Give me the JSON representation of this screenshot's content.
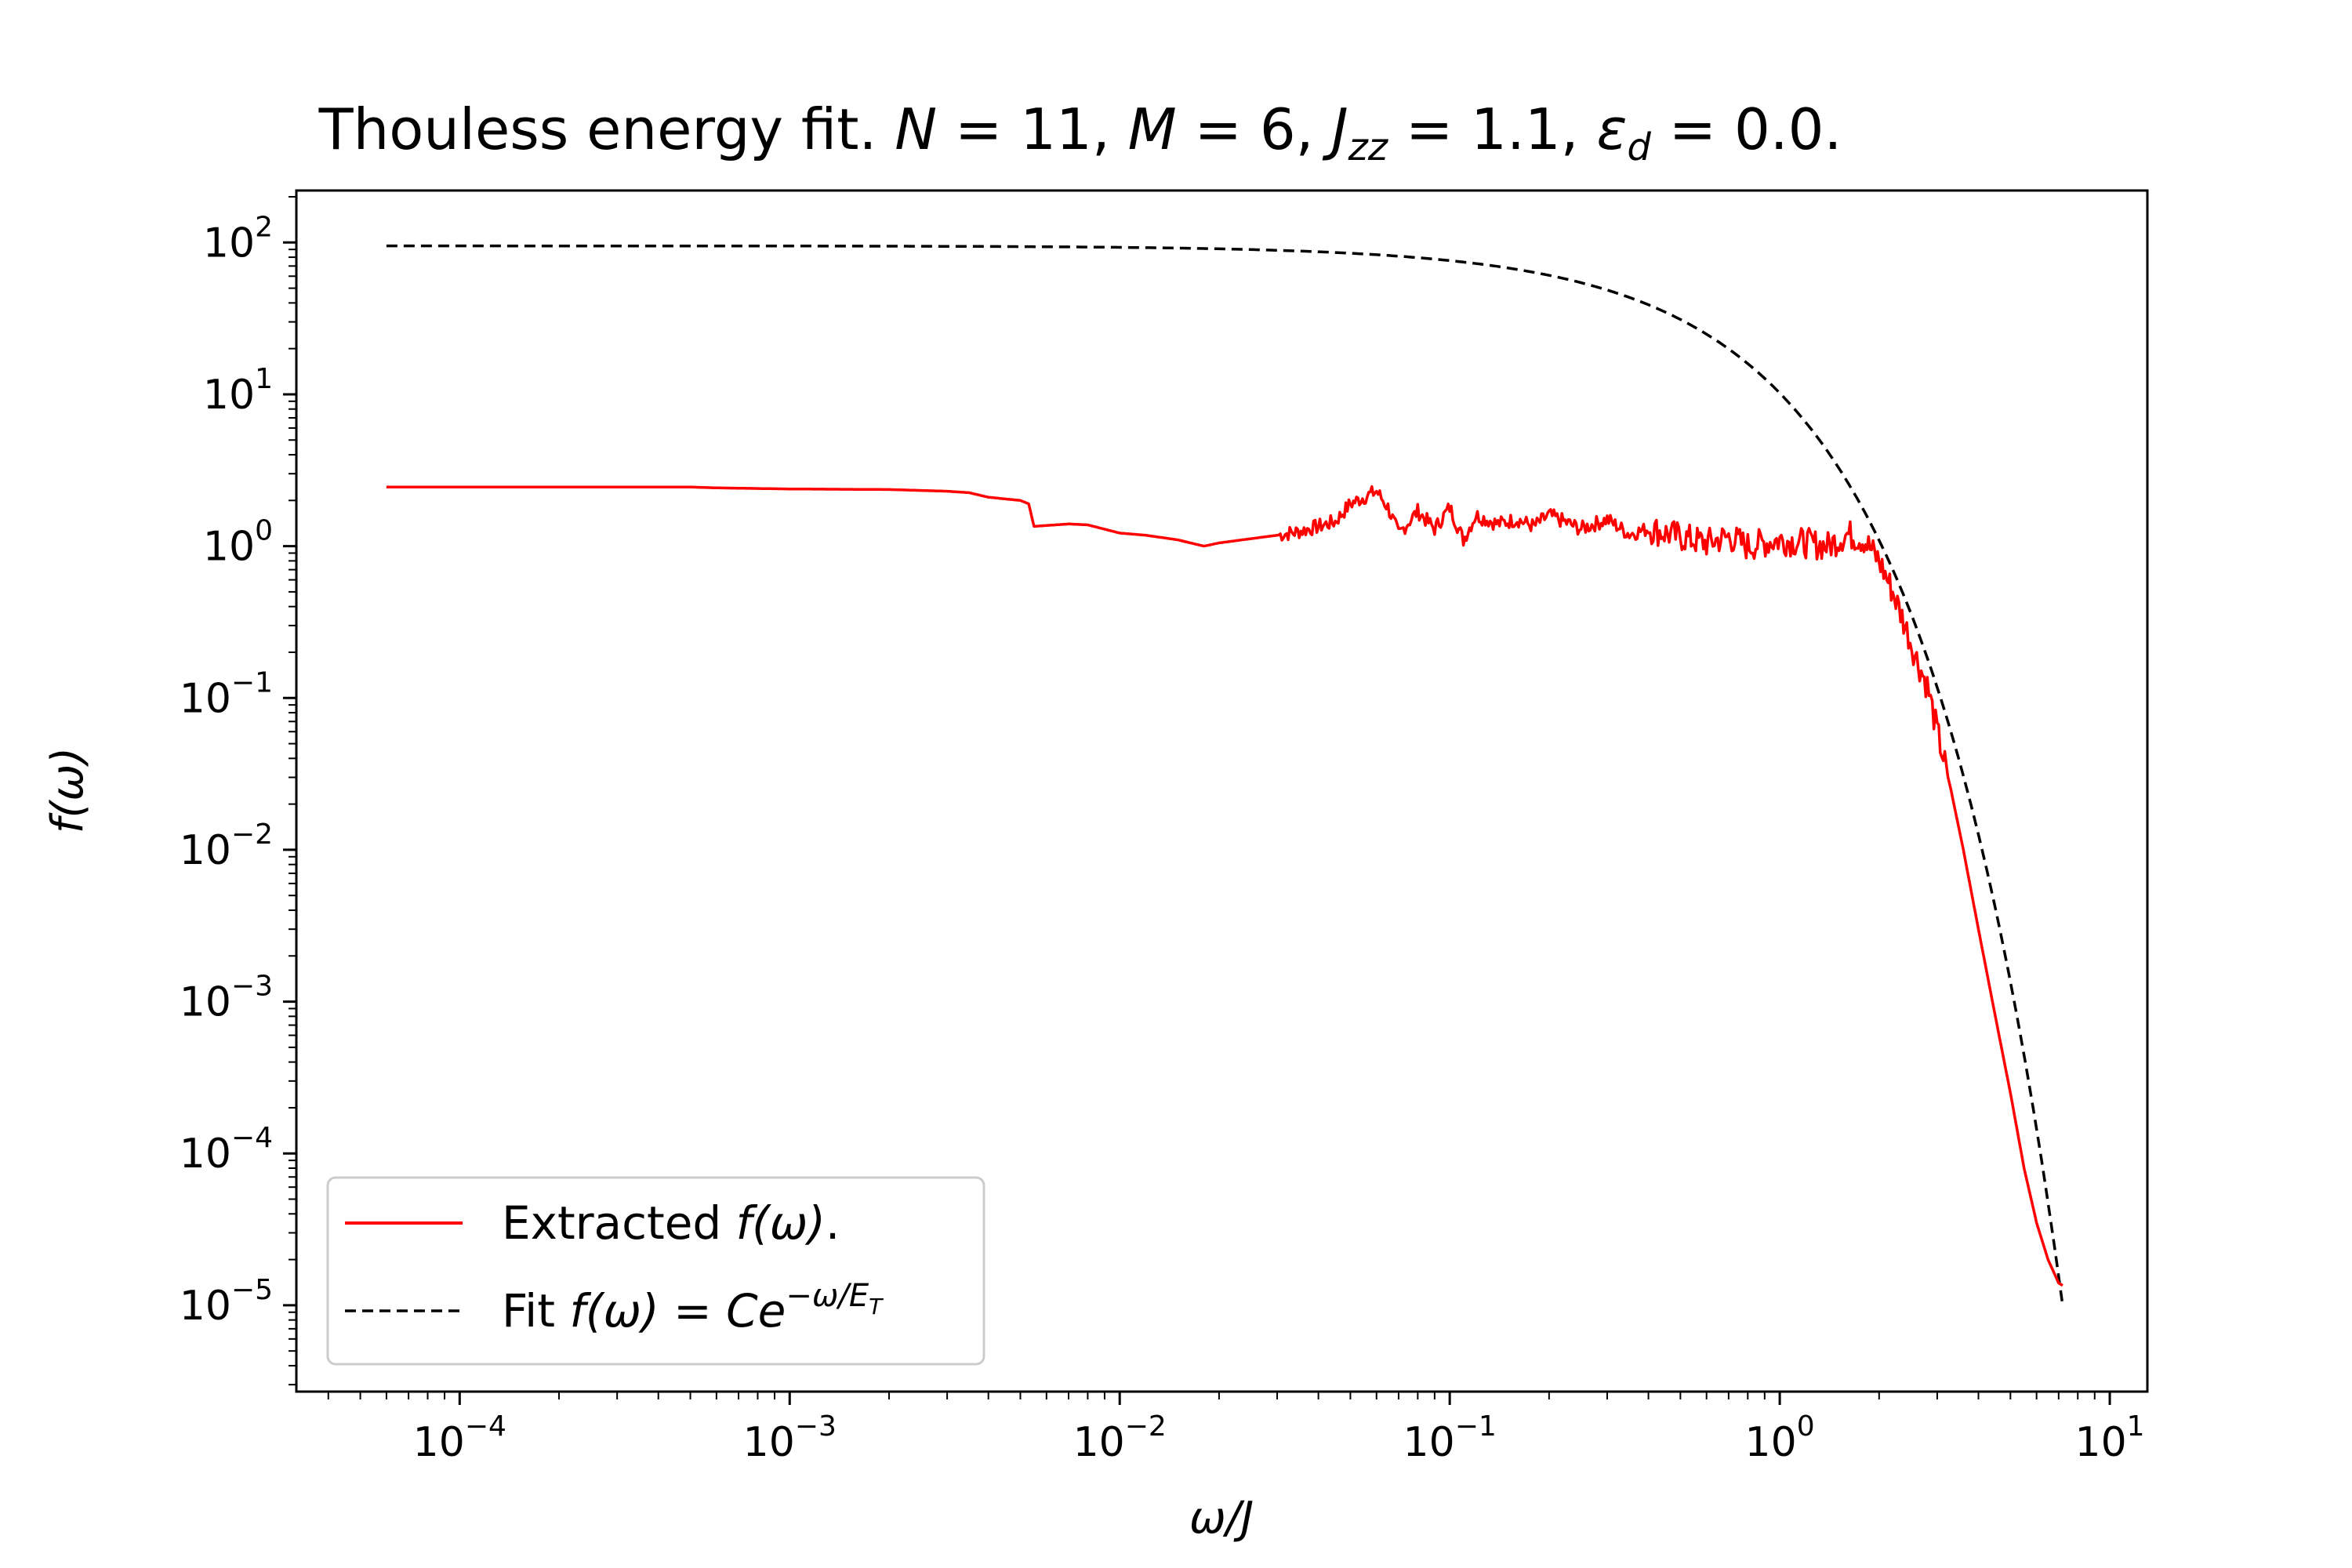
{
  "chart_data": {
    "type": "line",
    "title": "Thouless energy fit. N = 11, M = 6, J_zz = 1.1, ε_d = 0.0.",
    "title_parts": {
      "prefix": "Thouless energy fit. ",
      "n_var": "N",
      "n_val": " = 11, ",
      "m_var": "M",
      "m_val": " = 6, ",
      "j_var": "J",
      "j_sub": "zz",
      "j_val": " = 1.1, ",
      "e_var": "ε",
      "e_sub": "d",
      "e_val": " = 0.0."
    },
    "xlabel": "ω/J",
    "ylabel": "f(ω)",
    "xscale": "log",
    "yscale": "log",
    "xlim": [
      3.2e-05,
      13.0
    ],
    "ylim": [
      2.7e-06,
      220.0
    ],
    "x_ticks": [
      {
        "base": "10",
        "exp": "−4",
        "value": 0.0001
      },
      {
        "base": "10",
        "exp": "−3",
        "value": 0.001
      },
      {
        "base": "10",
        "exp": "−2",
        "value": 0.01
      },
      {
        "base": "10",
        "exp": "−1",
        "value": 0.1
      },
      {
        "base": "10",
        "exp": "0",
        "value": 1
      },
      {
        "base": "10",
        "exp": "1",
        "value": 10
      }
    ],
    "y_ticks": [
      {
        "base": "10",
        "exp": "2",
        "value": 100
      },
      {
        "base": "10",
        "exp": "1",
        "value": 10
      },
      {
        "base": "10",
        "exp": "0",
        "value": 1
      },
      {
        "base": "10",
        "exp": "−1",
        "value": 0.1
      },
      {
        "base": "10",
        "exp": "−2",
        "value": 0.01
      },
      {
        "base": "10",
        "exp": "−3",
        "value": 0.001
      },
      {
        "base": "10",
        "exp": "−4",
        "value": 0.0001
      },
      {
        "base": "10",
        "exp": "−5",
        "value": 1e-05
      }
    ],
    "legend": {
      "position": "lower-left",
      "entries": [
        {
          "label_prefix": "Extracted ",
          "label_math": "f(ω)",
          "label_suffix": ".",
          "color": "#ff0000",
          "style": "solid"
        },
        {
          "label_prefix": "Fit ",
          "label_math": "f(ω) = Ce",
          "label_sup": "−ω/E",
          "label_sup_sub": "T",
          "color": "#000000",
          "style": "dashed"
        }
      ]
    },
    "series": [
      {
        "name": "Extracted f(ω).",
        "color": "#ff0000",
        "style": "solid",
        "x": [
          6e-05,
          0.0001,
          0.0002,
          0.0005,
          0.0006,
          0.001,
          0.002,
          0.003,
          0.0035,
          0.004,
          0.005,
          0.0053,
          0.0055,
          0.007,
          0.008,
          0.01,
          0.012,
          0.015,
          0.018,
          0.02,
          0.025,
          0.03,
          0.035,
          0.04,
          0.045,
          0.05,
          0.055,
          0.06,
          0.065,
          0.07,
          0.08,
          0.09,
          0.1,
          0.11,
          0.12,
          0.14,
          0.16,
          0.18,
          0.2,
          0.25,
          0.3,
          0.35,
          0.4,
          0.5,
          0.6,
          0.7,
          0.8,
          1.0,
          1.2,
          1.4,
          1.6,
          1.8,
          2.0,
          2.2,
          2.4,
          2.6,
          2.8,
          3.0,
          3.3,
          3.6,
          4.0,
          4.5,
          5.0,
          5.5,
          6.0,
          6.5,
          7.0,
          7.2
        ],
        "y": [
          2.45,
          2.45,
          2.45,
          2.45,
          2.42,
          2.38,
          2.36,
          2.3,
          2.25,
          2.1,
          2.0,
          1.9,
          1.35,
          1.4,
          1.38,
          1.22,
          1.18,
          1.1,
          1.0,
          1.05,
          1.12,
          1.18,
          1.25,
          1.35,
          1.45,
          1.9,
          2.1,
          2.3,
          1.8,
          1.2,
          1.7,
          1.3,
          1.8,
          1.1,
          1.6,
          1.4,
          1.5,
          1.35,
          1.6,
          1.3,
          1.5,
          1.2,
          1.3,
          1.15,
          1.05,
          1.15,
          1.0,
          1.1,
          1.05,
          1.0,
          1.2,
          1.1,
          0.8,
          0.5,
          0.3,
          0.18,
          0.12,
          0.06,
          0.025,
          0.01,
          0.003,
          0.0008,
          0.00025,
          8e-05,
          3.5e-05,
          2e-05,
          1.4e-05,
          1.35e-05
        ]
      },
      {
        "name": "Fit f(ω) = Ce^{−ω/E_T}",
        "color": "#000000",
        "style": "dashed",
        "C": 95.0,
        "E_T": 0.448,
        "x_range": [
          6e-05,
          7.2
        ]
      }
    ]
  }
}
